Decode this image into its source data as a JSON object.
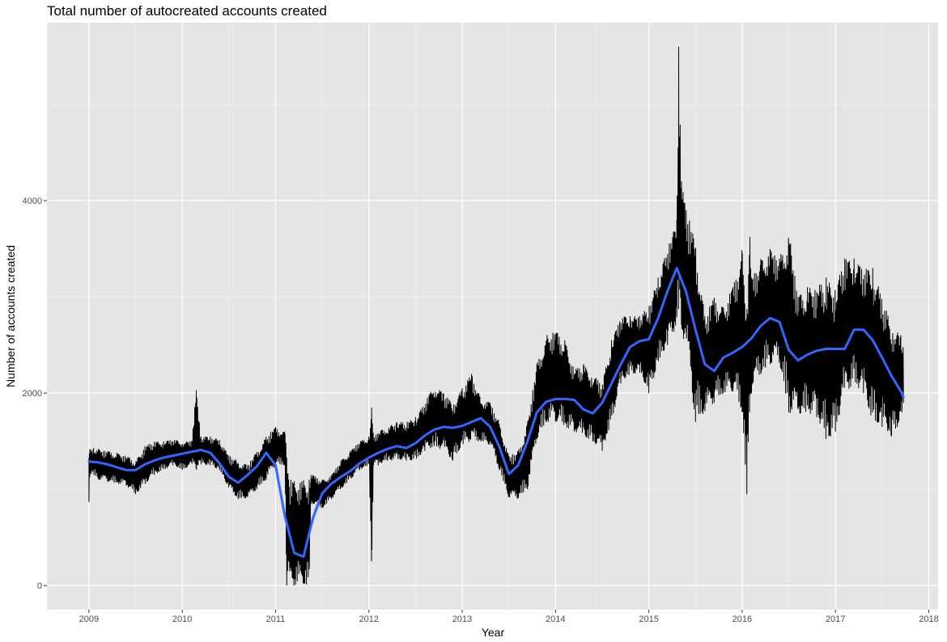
{
  "chart_data": {
    "type": "line",
    "title": "Total number of autocreated accounts created",
    "xlabel": "Year",
    "ylabel": "Number of accounts created",
    "xlim": [
      2008.55,
      2018.1
    ],
    "ylim": [
      -250,
      5850
    ],
    "x_ticks": [
      2009,
      2010,
      2011,
      2012,
      2013,
      2014,
      2015,
      2016,
      2017,
      2018
    ],
    "y_ticks": [
      0,
      2000,
      4000
    ],
    "grid": true,
    "legend": "none",
    "panel_background": "#e5e5e5",
    "series": [
      {
        "type": "line",
        "color": "#000000",
        "note_kind": "daily counts (approximate envelope, oscillating series)",
        "x": [
          2009.0,
          2009.01,
          2009.05,
          2009.1,
          2009.2,
          2009.3,
          2009.4,
          2009.5,
          2009.6,
          2009.7,
          2009.8,
          2009.9,
          2010.0,
          2010.1,
          2010.15,
          2010.2,
          2010.3,
          2010.4,
          2010.5,
          2010.6,
          2010.7,
          2010.8,
          2010.9,
          2011.0,
          2011.1,
          2011.12,
          2011.14,
          2011.36,
          2011.38,
          2011.4,
          2011.5,
          2011.6,
          2011.7,
          2011.8,
          2011.9,
          2012.0,
          2012.03,
          2012.05,
          2012.1,
          2012.2,
          2012.3,
          2012.4,
          2012.5,
          2012.6,
          2012.7,
          2012.8,
          2012.9,
          2013.0,
          2013.1,
          2013.2,
          2013.3,
          2013.4,
          2013.5,
          2013.6,
          2013.7,
          2013.8,
          2013.9,
          2014.0,
          2014.1,
          2014.2,
          2014.3,
          2014.4,
          2014.5,
          2014.6,
          2014.7,
          2014.8,
          2014.9,
          2015.0,
          2015.1,
          2015.2,
          2015.3,
          2015.32,
          2015.35,
          2015.4,
          2015.5,
          2015.6,
          2015.7,
          2015.8,
          2015.9,
          2016.0,
          2016.05,
          2016.08,
          2016.1,
          2016.2,
          2016.3,
          2016.4,
          2016.5,
          2016.6,
          2016.7,
          2016.8,
          2016.9,
          2017.0,
          2017.1,
          2017.2,
          2017.3,
          2017.4,
          2017.5,
          2017.6,
          2017.7,
          2017.73
        ],
        "y_low": [
          870,
          1150,
          1150,
          1100,
          1080,
          1060,
          1040,
          950,
          1050,
          1150,
          1200,
          1250,
          1200,
          1250,
          1200,
          1250,
          1250,
          1200,
          1000,
          900,
          900,
          1000,
          1100,
          1250,
          1250,
          0,
          0,
          0,
          850,
          850,
          800,
          900,
          1000,
          1100,
          1200,
          1250,
          200,
          1250,
          1250,
          1300,
          1300,
          1300,
          1300,
          1400,
          1450,
          1400,
          1300,
          1450,
          1500,
          1500,
          1450,
          1200,
          900,
          900,
          1000,
          1500,
          1700,
          1700,
          1650,
          1600,
          1550,
          1500,
          1400,
          1700,
          2100,
          2200,
          2200,
          2000,
          2300,
          2500,
          2700,
          2800,
          2600,
          2500,
          1700,
          1800,
          1900,
          2000,
          2000,
          1800,
          950,
          1800,
          2000,
          2200,
          2300,
          2300,
          1800,
          1750,
          1800,
          1750,
          1500,
          1600,
          2000,
          2100,
          2000,
          1700,
          1650,
          1550,
          1700,
          1900
        ],
        "y_high": [
          1330,
          1420,
          1430,
          1420,
          1400,
          1380,
          1350,
          1300,
          1450,
          1500,
          1500,
          1520,
          1500,
          1500,
          2030,
          1550,
          1550,
          1520,
          1350,
          1300,
          1250,
          1400,
          1550,
          1650,
          1600,
          1550,
          1100,
          1100,
          1150,
          1150,
          1100,
          1150,
          1300,
          1400,
          1500,
          1550,
          1850,
          1550,
          1600,
          1650,
          1700,
          1700,
          1750,
          1900,
          2100,
          2000,
          1900,
          2050,
          2200,
          1950,
          1900,
          1700,
          1350,
          1400,
          1700,
          2300,
          2600,
          2650,
          2550,
          2250,
          2300,
          2200,
          2100,
          2550,
          2800,
          2800,
          2800,
          2900,
          3200,
          3500,
          3800,
          5600,
          4200,
          3900,
          3600,
          2800,
          3000,
          2900,
          3100,
          3500,
          3000,
          3700,
          3200,
          3400,
          3500,
          3400,
          3700,
          3000,
          3100,
          3100,
          3200,
          3100,
          3400,
          3400,
          3300,
          3300,
          3000,
          2700,
          2600,
          2550
        ]
      },
      {
        "type": "smooth",
        "color": "#3366ff",
        "band_color": "#bdbdbd",
        "x": [
          2009.0,
          2009.1,
          2009.2,
          2009.3,
          2009.4,
          2009.5,
          2009.6,
          2009.7,
          2009.8,
          2009.9,
          2010.0,
          2010.1,
          2010.2,
          2010.3,
          2010.4,
          2010.5,
          2010.6,
          2010.7,
          2010.8,
          2010.9,
          2011.0,
          2011.1,
          2011.2,
          2011.3,
          2011.4,
          2011.5,
          2011.6,
          2011.7,
          2011.8,
          2011.9,
          2012.0,
          2012.1,
          2012.2,
          2012.3,
          2012.4,
          2012.5,
          2012.6,
          2012.7,
          2012.8,
          2012.9,
          2013.0,
          2013.1,
          2013.2,
          2013.3,
          2013.4,
          2013.5,
          2013.6,
          2013.7,
          2013.8,
          2013.9,
          2014.0,
          2014.1,
          2014.2,
          2014.3,
          2014.4,
          2014.5,
          2014.6,
          2014.7,
          2014.8,
          2014.9,
          2015.0,
          2015.1,
          2015.2,
          2015.3,
          2015.4,
          2015.5,
          2015.6,
          2015.7,
          2015.8,
          2015.9,
          2016.0,
          2016.1,
          2016.2,
          2016.3,
          2016.4,
          2016.5,
          2016.6,
          2016.7,
          2016.8,
          2016.9,
          2017.0,
          2017.1,
          2017.2,
          2017.3,
          2017.4,
          2017.5,
          2017.6,
          2017.7,
          2017.73
        ],
        "y": [
          1290,
          1280,
          1260,
          1230,
          1200,
          1200,
          1260,
          1300,
          1330,
          1350,
          1370,
          1390,
          1410,
          1380,
          1270,
          1130,
          1070,
          1150,
          1240,
          1380,
          1250,
          720,
          340,
          300,
          700,
          960,
          1060,
          1130,
          1190,
          1270,
          1330,
          1380,
          1420,
          1450,
          1430,
          1480,
          1560,
          1620,
          1650,
          1640,
          1660,
          1700,
          1740,
          1650,
          1440,
          1160,
          1250,
          1500,
          1800,
          1910,
          1940,
          1940,
          1930,
          1830,
          1790,
          1900,
          2100,
          2300,
          2480,
          2540,
          2560,
          2780,
          3060,
          3300,
          3050,
          2660,
          2300,
          2230,
          2370,
          2420,
          2480,
          2570,
          2700,
          2780,
          2740,
          2450,
          2340,
          2400,
          2440,
          2460,
          2460,
          2460,
          2660,
          2660,
          2550,
          2370,
          2180,
          2020,
          1960
        ]
      }
    ]
  }
}
